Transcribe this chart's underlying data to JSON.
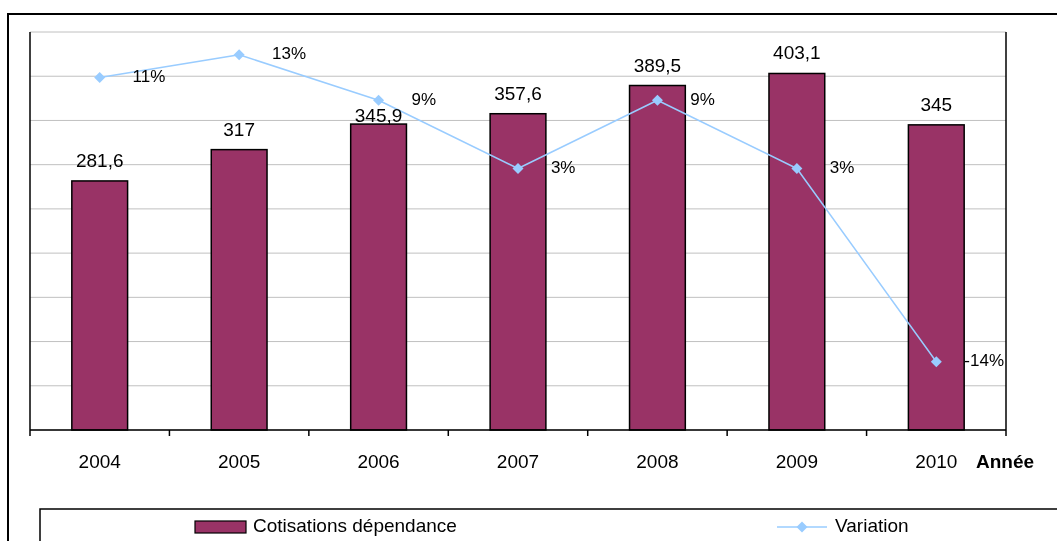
{
  "chart_data": {
    "type": "bar",
    "xlabel": "Année",
    "categories": [
      "2004",
      "2005",
      "2006",
      "2007",
      "2008",
      "2009",
      "2010"
    ],
    "series": [
      {
        "name": "Cotisations dépendance",
        "color": "#993366",
        "values": [
          281.6,
          317,
          345.9,
          357.6,
          389.5,
          403.1,
          345
        ],
        "value_labels": [
          "281,6",
          "317",
          "345,9",
          "357,6",
          "389,5",
          "403,1",
          "345"
        ]
      },
      {
        "name": "Variation",
        "type": "line",
        "axis": "y2",
        "color": "#99ccff",
        "marker": "diamond",
        "values": [
          11,
          13,
          9,
          3,
          9,
          3,
          -14
        ],
        "value_labels": [
          "11%",
          "13%",
          "9%",
          "3%",
          "9%",
          "3%",
          "-14%"
        ]
      }
    ],
    "ylim": [
      0,
      450
    ],
    "yticks": [
      {
        "value": 0,
        "label": null
      },
      {
        "value": 50,
        "label": null
      },
      {
        "value": 100,
        "label": null
      },
      {
        "value": 150,
        "label": null
      },
      {
        "value": 200,
        "label": null
      },
      {
        "value": 250,
        "label": null
      },
      {
        "value": 300,
        "label": null
      },
      {
        "value": 350,
        "label": null
      },
      {
        "value": 400,
        "label": null
      },
      {
        "value": 450,
        "label": null
      }
    ],
    "y2lim": [
      -20,
      15
    ],
    "grid": "y",
    "legend": "bottom",
    "tick_labels": "x"
  }
}
